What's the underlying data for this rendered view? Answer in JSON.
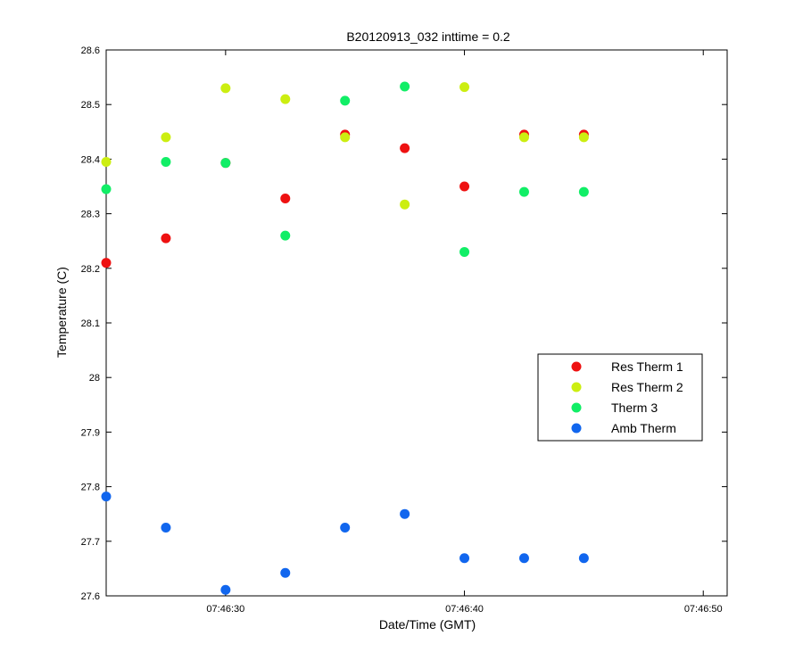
{
  "chart_data": {
    "type": "scatter",
    "title": "B20120913_032 inttime = 0.2",
    "xlabel": "Date/Time (GMT)",
    "ylabel": "Temperature (C)",
    "x_unit": "time (hh:mm:ss, GMT)",
    "xlim": [
      "07:46:25",
      "07:46:51"
    ],
    "ylim": [
      27.6,
      28.6
    ],
    "yticks": [
      "27.6",
      "27.7",
      "27.8",
      "27.9",
      "28",
      "28.1",
      "28.2",
      "28.3",
      "28.4",
      "28.5",
      "28.6"
    ],
    "xticks": [
      "07:46:30",
      "07:46:40",
      "07:46:50"
    ],
    "grid": false,
    "legend_position": "right",
    "x": [
      "07:46:25",
      "07:46:27.5",
      "07:46:30",
      "07:46:32.5",
      "07:46:35",
      "07:46:37.5",
      "07:46:40",
      "07:46:42.5",
      "07:46:45"
    ],
    "series": [
      {
        "name": "Res Therm 1",
        "color": "#ee1111",
        "values": [
          28.21,
          28.255,
          28.393,
          28.328,
          28.445,
          28.42,
          28.35,
          28.445,
          28.445
        ]
      },
      {
        "name": "Res Therm 2",
        "color": "#ccee11",
        "values": [
          28.395,
          28.44,
          28.53,
          28.51,
          28.44,
          28.317,
          28.532,
          28.44,
          28.44
        ]
      },
      {
        "name": "Therm 3",
        "color": "#11ee66",
        "values": [
          28.345,
          28.395,
          28.393,
          28.26,
          28.507,
          28.533,
          28.23,
          28.34,
          28.34
        ]
      },
      {
        "name": "Amb Therm",
        "color": "#1166ee",
        "values": [
          27.782,
          27.725,
          27.611,
          27.642,
          27.725,
          27.75,
          27.669,
          27.669,
          27.669
        ]
      }
    ]
  }
}
